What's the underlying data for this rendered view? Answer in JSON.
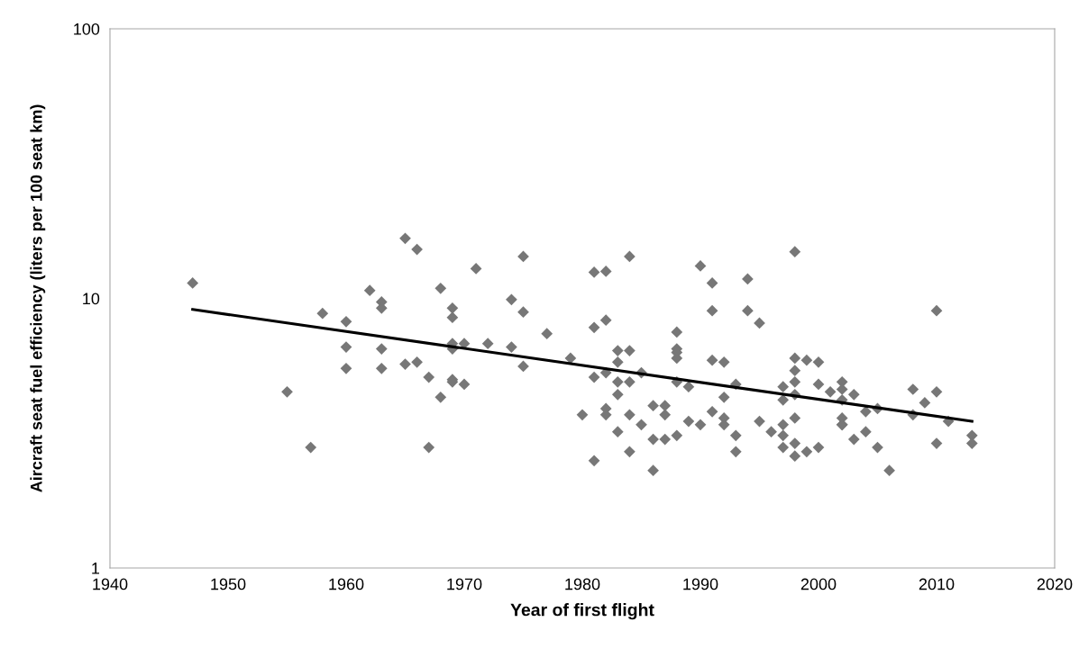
{
  "chart_data": {
    "type": "scatter",
    "xlabel": "Year of first flight",
    "ylabel": "Aircraft seat fuel efficiency (liters per 100 seat km)",
    "log": "y",
    "xlim": [
      1940,
      2020
    ],
    "xticks": [
      1940,
      1950,
      1960,
      1970,
      1980,
      1990,
      2000,
      2010,
      2020
    ],
    "ylim": [
      1,
      100
    ],
    "yticks": [
      1,
      10,
      100
    ],
    "grid": false,
    "series": [
      {
        "color": "#777777",
        "marker": "diamond",
        "x": [
          1947,
          1955,
          1957,
          1958,
          1960,
          1960,
          1960,
          1962,
          1963,
          1963,
          1963,
          1963,
          1965,
          1965,
          1966,
          1966,
          1967,
          1967,
          1968,
          1968,
          1969,
          1969,
          1969,
          1969,
          1969,
          1969,
          1970,
          1970,
          1971,
          1972,
          1974,
          1974,
          1975,
          1975,
          1975,
          1977,
          1979,
          1980,
          1981,
          1981,
          1981,
          1981,
          1982,
          1982,
          1982,
          1982,
          1982,
          1983,
          1983,
          1983,
          1983,
          1983,
          1984,
          1984,
          1984,
          1984,
          1984,
          1985,
          1985,
          1986,
          1986,
          1986,
          1987,
          1987,
          1987,
          1988,
          1988,
          1988,
          1988,
          1988,
          1988,
          1989,
          1989,
          1990,
          1990,
          1991,
          1991,
          1991,
          1991,
          1992,
          1992,
          1992,
          1992,
          1993,
          1993,
          1993,
          1994,
          1994,
          1995,
          1995,
          1996,
          1997,
          1997,
          1997,
          1997,
          1997,
          1998,
          1998,
          1998,
          1998,
          1998,
          1998,
          1998,
          1998,
          1999,
          1999,
          2000,
          2000,
          2000,
          2001,
          2002,
          2002,
          2002,
          2002,
          2002,
          2002,
          2003,
          2003,
          2004,
          2004,
          2005,
          2005,
          2006,
          2008,
          2008,
          2009,
          2010,
          2010,
          2010,
          2011,
          2013,
          2013
        ],
        "values": [
          11.4,
          4.5,
          2.8,
          8.8,
          8.2,
          6.6,
          5.5,
          10.7,
          9.7,
          9.2,
          6.5,
          5.5,
          16.7,
          5.7,
          15.2,
          5.8,
          5.1,
          2.8,
          10.9,
          4.3,
          9.2,
          8.5,
          6.8,
          6.5,
          5.0,
          4.9,
          6.8,
          4.8,
          12.9,
          6.8,
          9.9,
          6.6,
          14.3,
          8.9,
          5.6,
          7.4,
          6.0,
          3.7,
          12.5,
          7.8,
          5.1,
          2.5,
          12.6,
          8.3,
          5.3,
          3.9,
          3.7,
          6.4,
          5.8,
          4.9,
          4.4,
          3.2,
          14.3,
          6.4,
          4.9,
          3.7,
          2.7,
          5.3,
          3.4,
          4.0,
          3.0,
          2.3,
          4.0,
          3.7,
          3.0,
          7.5,
          6.5,
          6.3,
          6.0,
          4.9,
          3.1,
          4.7,
          3.5,
          13.2,
          3.4,
          11.4,
          9.0,
          5.9,
          3.8,
          5.8,
          4.3,
          3.6,
          3.4,
          4.8,
          3.1,
          2.7,
          11.8,
          9.0,
          8.1,
          3.5,
          3.2,
          4.7,
          4.2,
          3.4,
          3.1,
          2.8,
          14.9,
          6.0,
          5.4,
          4.9,
          4.4,
          3.6,
          2.9,
          2.6,
          5.9,
          2.7,
          5.8,
          4.8,
          2.8,
          4.5,
          4.9,
          4.6,
          4.2,
          3.6,
          3.4,
          3.4,
          4.4,
          3.0,
          3.8,
          3.2,
          3.9,
          2.8,
          2.3,
          3.7,
          4.6,
          4.1,
          9.0,
          4.5,
          2.9,
          3.5,
          3.1,
          2.9
        ]
      },
      {
        "type": "line",
        "color": "#000000",
        "marker": "none",
        "line_style": "solid",
        "x": [
          1947,
          2013
        ],
        "values": [
          9.1,
          3.5
        ]
      }
    ]
  }
}
